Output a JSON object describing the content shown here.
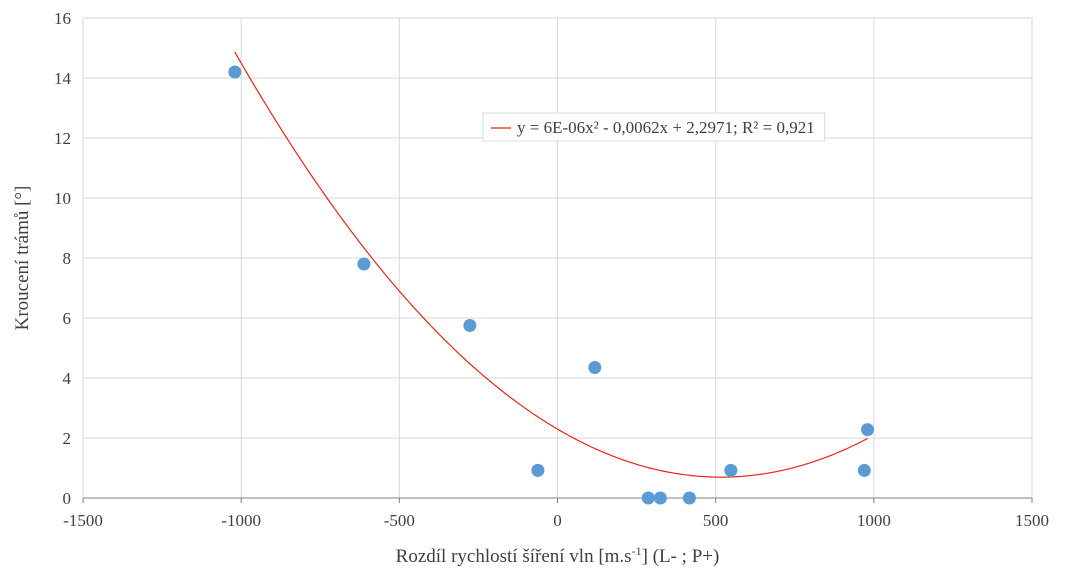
{
  "chart_data": {
    "type": "scatter",
    "title": "",
    "xlabel": "Rozdíl rychlostí šíření vln [m.s-1] (L- ; P+)",
    "ylabel": "Kroucení  trámů [°]",
    "xlim": [
      -1500,
      1500
    ],
    "ylim": [
      0,
      16
    ],
    "x_ticks": [
      -1500,
      -1000,
      -500,
      0,
      500,
      1000,
      1500
    ],
    "y_ticks": [
      0,
      2,
      4,
      6,
      8,
      10,
      12,
      14,
      16
    ],
    "x_tick_labels": [
      "-1500",
      "-1000",
      "-500",
      "0",
      "500",
      "1000",
      "1500"
    ],
    "y_tick_labels": [
      "0",
      "2",
      "4",
      "6",
      "8",
      "10",
      "12",
      "14",
      "16"
    ],
    "grid": true,
    "series": [
      {
        "marker_color": "#5b9bd5",
        "points": [
          {
            "x": -1020,
            "y": 14.2
          },
          {
            "x": -612,
            "y": 7.8
          },
          {
            "x": -277,
            "y": 5.75
          },
          {
            "x": -62,
            "y": 0.92
          },
          {
            "x": 118,
            "y": 4.35
          },
          {
            "x": 287,
            "y": 0.0
          },
          {
            "x": 325,
            "y": 0.0
          },
          {
            "x": 417,
            "y": 0.0
          },
          {
            "x": 548,
            "y": 0.92
          },
          {
            "x": 970,
            "y": 0.92
          },
          {
            "x": 980,
            "y": 2.28
          }
        ]
      }
    ],
    "trendline": {
      "type": "polynomial",
      "order": 2,
      "coefficients": {
        "a": 6e-06,
        "b": -0.0062,
        "c": 2.2971
      },
      "x_range": [
        -1020,
        980
      ],
      "color": "#e8251d",
      "legend_label": "y = 6E-06x² - 0,0062x + 2,2971; R² = 0,921"
    },
    "legend_position": "top-right"
  }
}
